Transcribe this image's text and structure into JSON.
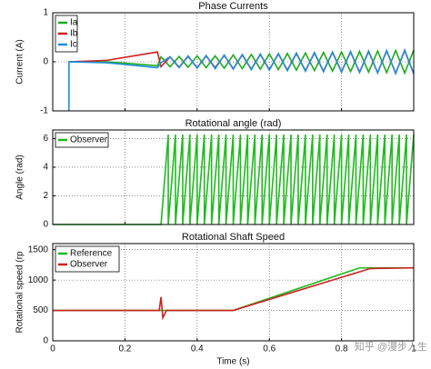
{
  "chart_data": [
    {
      "type": "line",
      "title": "Phase Currents",
      "ylabel": "Current (A)",
      "xlim": [
        0,
        1
      ],
      "xticks": [
        0,
        0.2,
        0.4,
        0.6,
        0.8,
        1
      ],
      "ylim": [
        -1,
        1
      ],
      "yticks": [
        -1,
        0,
        1
      ],
      "grid": true,
      "legend": "upper left",
      "series": [
        {
          "name": "Ia",
          "color": "#1faa1f",
          "x": [
            0.045,
            0.15,
            0.29,
            0.3,
            0.325,
            0.35,
            0.375,
            0.4,
            0.425,
            0.45,
            0.475,
            0.5,
            0.525,
            0.55,
            0.575,
            0.6,
            0.625,
            0.65,
            0.675,
            0.7,
            0.725,
            0.75,
            0.775,
            0.8,
            0.825,
            0.85,
            0.875,
            0.9,
            0.925,
            0.95,
            0.975,
            1
          ],
          "values": [
            0,
            0,
            -0.08,
            0.1,
            -0.1,
            0.11,
            -0.11,
            0.12,
            -0.12,
            0.12,
            -0.13,
            0.14,
            -0.14,
            0.15,
            -0.15,
            0.16,
            -0.16,
            0.17,
            -0.17,
            0.18,
            -0.18,
            0.19,
            -0.19,
            0.2,
            -0.2,
            0.21,
            -0.21,
            0.22,
            -0.22,
            0.23,
            -0.23,
            0.24
          ]
        },
        {
          "name": "Ib",
          "color": "#d01f1f",
          "x": [
            0.045,
            0.15,
            0.29,
            0.3,
            0.325,
            0.35,
            0.375,
            0.4,
            0.425,
            0.45,
            0.475,
            0.5,
            0.525,
            0.55,
            0.575,
            0.6,
            0.625,
            0.65,
            0.675,
            0.7,
            0.725,
            0.75,
            0.775,
            0.8,
            0.825,
            0.85,
            0.875,
            0.9,
            0.925,
            0.95,
            0.975,
            1
          ],
          "values": [
            0,
            0.03,
            0.2,
            -0.1,
            0.1,
            -0.11,
            0.11,
            -0.12,
            0.12,
            -0.12,
            0.13,
            -0.14,
            0.14,
            -0.15,
            0.15,
            -0.16,
            0.16,
            -0.17,
            0.17,
            -0.18,
            0.18,
            -0.19,
            0.19,
            -0.2,
            0.2,
            -0.21,
            0.21,
            -0.22,
            0.22,
            -0.23,
            0.23,
            -0.24
          ]
        },
        {
          "name": "Ic",
          "color": "#1f8fd8",
          "x": [
            0.045,
            0.045,
            0.15,
            0.29,
            0.3,
            0.325,
            0.35,
            0.375,
            0.4,
            0.425,
            0.45,
            0.475,
            0.5,
            0.525,
            0.55,
            0.575,
            0.6,
            0.625,
            0.65,
            0.675,
            0.7,
            0.725,
            0.75,
            0.775,
            0.8,
            0.825,
            0.85,
            0.875,
            0.9,
            0.925,
            0.95,
            0.975,
            1
          ],
          "values": [
            -1,
            0,
            -0.02,
            -0.12,
            -0.02,
            0.1,
            -0.12,
            0.12,
            -0.13,
            0.13,
            -0.14,
            0.14,
            -0.15,
            0.15,
            -0.16,
            0.16,
            -0.17,
            0.17,
            -0.18,
            0.18,
            -0.19,
            0.19,
            -0.2,
            0.2,
            -0.21,
            0.21,
            -0.22,
            0.22,
            -0.23,
            0.23,
            -0.24,
            0.24,
            -0.25
          ]
        }
      ]
    },
    {
      "type": "line",
      "title": "Rotational angle (rad)",
      "ylabel": "Angle (rad)",
      "xlim": [
        0,
        1
      ],
      "xticks": [
        0,
        0.2,
        0.4,
        0.6,
        0.8,
        1
      ],
      "ylim": [
        0,
        6.6
      ],
      "yticks": [
        0,
        2,
        4,
        6
      ],
      "grid": true,
      "legend": "upper left",
      "series": [
        {
          "name": "Observer",
          "color": "#1fbb1f",
          "x": [
            0,
            0.3,
            0.32,
            0.32,
            0.34,
            0.34,
            0.36,
            0.36,
            0.38,
            0.38,
            0.4,
            0.4,
            0.42,
            0.42,
            0.44,
            0.44,
            0.46,
            0.46,
            0.48,
            0.48,
            0.5,
            0.5,
            0.52,
            0.52,
            0.54,
            0.54,
            0.56,
            0.56,
            0.58,
            0.58,
            0.6,
            0.6,
            0.62,
            0.62,
            0.64,
            0.64,
            0.66,
            0.66,
            0.68,
            0.68,
            0.7,
            0.7,
            0.72,
            0.72,
            0.74,
            0.74,
            0.76,
            0.76,
            0.78,
            0.78,
            0.8,
            0.8,
            0.82,
            0.82,
            0.84,
            0.84,
            0.86,
            0.86,
            0.88,
            0.88,
            0.9,
            0.9,
            0.92,
            0.92,
            0.94,
            0.94,
            0.96,
            0.96,
            0.98,
            0.98,
            1
          ],
          "values": [
            0,
            0,
            6.28,
            0,
            6.28,
            0,
            6.28,
            0,
            6.28,
            0,
            6.28,
            0,
            6.28,
            0,
            6.28,
            0,
            6.28,
            0,
            6.28,
            0,
            6.28,
            0,
            6.28,
            0,
            6.28,
            0,
            6.28,
            0,
            6.28,
            0,
            6.28,
            0,
            6.28,
            0,
            6.28,
            0,
            6.28,
            0,
            6.28,
            0,
            6.28,
            0,
            6.28,
            0,
            6.28,
            0,
            6.28,
            0,
            6.28,
            0,
            6.28,
            0,
            6.28,
            0,
            6.28,
            0,
            6.28,
            0,
            6.28,
            0,
            6.28,
            0,
            6.28,
            0,
            6.28,
            0,
            6.28,
            0,
            6.28,
            0,
            6.28
          ]
        }
      ]
    },
    {
      "type": "line",
      "title": "Rotational Shaft Speed",
      "ylabel": "Rotational speed (rp",
      "xlabel": "Time (s)",
      "xlim": [
        0,
        1
      ],
      "xticks": [
        0,
        0.2,
        0.4,
        0.6,
        0.8,
        1
      ],
      "ylim": [
        0,
        1600
      ],
      "yticks": [
        0,
        500,
        1000,
        1500
      ],
      "grid": true,
      "legend": "upper left",
      "series": [
        {
          "name": "Reference",
          "color": "#1fbb1f",
          "x": [
            0,
            0.5,
            0.85,
            1
          ],
          "values": [
            500,
            500,
            1200,
            1200
          ]
        },
        {
          "name": "Observer",
          "color": "#d01f1f",
          "x": [
            0,
            0.295,
            0.3,
            0.305,
            0.315,
            0.5,
            0.88,
            1
          ],
          "values": [
            500,
            500,
            720,
            380,
            500,
            500,
            1190,
            1200
          ]
        }
      ]
    }
  ],
  "watermark": "知乎 @漫步人生"
}
